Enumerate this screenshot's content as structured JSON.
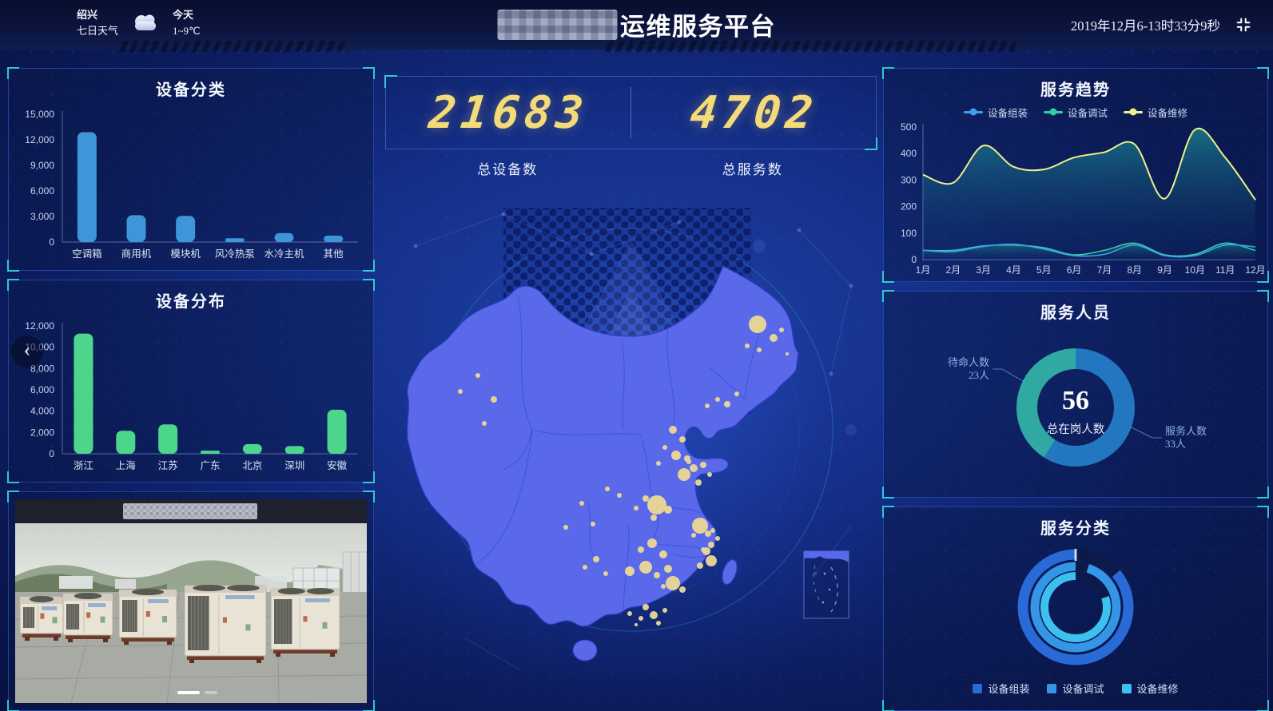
{
  "header": {
    "weather": {
      "city": "绍兴",
      "range_label": "七日天气",
      "today_label": "今天",
      "temperature": "1~9℃",
      "icon": "cloud-icon"
    },
    "title": "运维服务平台",
    "datetime": "2019年12月6-13时33分9秒",
    "fullscreen_icon": "compress-icon"
  },
  "stats": {
    "devices": {
      "value": "21683",
      "label": "总设备数"
    },
    "services": {
      "value": "4702",
      "label": "总服务数"
    }
  },
  "carousel": {
    "prev_glyph": "‹"
  },
  "chart_data": [
    {
      "id": "device-category",
      "type": "bar",
      "title": "设备分类",
      "categories": [
        "空调箱",
        "商用机",
        "模块机",
        "风冷热泵",
        "水冷主机",
        "其他"
      ],
      "values": [
        12900,
        3150,
        3070,
        450,
        1050,
        750
      ],
      "ylim": [
        0,
        15000
      ],
      "ytick_step": 3000,
      "color": "#3e96d9",
      "xlabel": "",
      "ylabel": "",
      "grid": false
    },
    {
      "id": "device-distribution",
      "type": "bar",
      "title": "设备分布",
      "categories": [
        "浙江",
        "上海",
        "江苏",
        "广东",
        "北京",
        "深圳",
        "安徽"
      ],
      "values": [
        11280,
        2160,
        2760,
        290,
        910,
        720,
        4130
      ],
      "ylim": [
        0,
        12000
      ],
      "ytick_step": 2000,
      "color": "#4bd68c",
      "xlabel": "",
      "ylabel": "",
      "grid": false
    },
    {
      "id": "service-trend",
      "type": "line",
      "title": "服务趋势",
      "x": [
        "1月",
        "2月",
        "3月",
        "4月",
        "5月",
        "6月",
        "7月",
        "8月",
        "9月",
        "10月",
        "11月",
        "12月"
      ],
      "ylim": [
        0,
        500
      ],
      "ytick_step": 100,
      "legend_position": "top",
      "smooth": true,
      "series": [
        {
          "name": "设备组装",
          "color": "#3f9fe8",
          "values": [
            35,
            30,
            50,
            58,
            40,
            15,
            20,
            55,
            15,
            15,
            55,
            48
          ]
        },
        {
          "name": "设备调试",
          "color": "#2ed0a2",
          "values": [
            35,
            35,
            52,
            55,
            45,
            18,
            35,
            62,
            18,
            20,
            62,
            35
          ],
          "area": "small"
        },
        {
          "name": "设备维修",
          "color": "#eef089",
          "values": [
            320,
            290,
            430,
            350,
            340,
            385,
            405,
            435,
            230,
            490,
            385,
            225
          ],
          "area": "big"
        }
      ]
    },
    {
      "id": "service-staff",
      "type": "pie",
      "title": "服务人员",
      "center_value": "56",
      "center_label": "总在岗人数",
      "slices": [
        {
          "name": "服务人数",
          "value": 33,
          "suffix": "人",
          "color": "#2277c0"
        },
        {
          "name": "待命人数",
          "value": 23,
          "suffix": "人",
          "color": "#2fa9a2"
        }
      ]
    },
    {
      "id": "service-category",
      "type": "pie",
      "subtype": "nested-rings",
      "title": "服务分类",
      "rings": [
        {
          "name": "设备组装",
          "color": "#2a6ad6",
          "pct": 86
        },
        {
          "name": "设备调试",
          "color": "#3496e4",
          "pct": 95
        },
        {
          "name": "设备维修",
          "color": "#3cc0ee",
          "pct": 80
        }
      ]
    }
  ],
  "map": {
    "dot_color": "#ecd995",
    "dots": [
      [
        468,
        168,
        11
      ],
      [
        488,
        185,
        5
      ],
      [
        455,
        195,
        3
      ],
      [
        470,
        200,
        3
      ],
      [
        498,
        175,
        3
      ],
      [
        505,
        205,
        2
      ],
      [
        430,
        268,
        4
      ],
      [
        442,
        255,
        3
      ],
      [
        418,
        262,
        3
      ],
      [
        405,
        270,
        3
      ],
      [
        362,
        300,
        5
      ],
      [
        374,
        312,
        4
      ],
      [
        352,
        322,
        3
      ],
      [
        366,
        332,
        6
      ],
      [
        380,
        336,
        4
      ],
      [
        344,
        342,
        3
      ],
      [
        388,
        348,
        5
      ],
      [
        400,
        344,
        4
      ],
      [
        408,
        356,
        3
      ],
      [
        376,
        356,
        8
      ],
      [
        394,
        366,
        4
      ],
      [
        382,
        340,
        3
      ],
      [
        342,
        394,
        12
      ],
      [
        328,
        386,
        4
      ],
      [
        356,
        400,
        5
      ],
      [
        338,
        410,
        4
      ],
      [
        316,
        398,
        3
      ],
      [
        295,
        382,
        3
      ],
      [
        280,
        374,
        3
      ],
      [
        396,
        420,
        10
      ],
      [
        406,
        430,
        4
      ],
      [
        412,
        426,
        3
      ],
      [
        418,
        436,
        3
      ],
      [
        410,
        444,
        4
      ],
      [
        400,
        450,
        3
      ],
      [
        388,
        432,
        3
      ],
      [
        336,
        442,
        6
      ],
      [
        322,
        450,
        4
      ],
      [
        350,
        456,
        5
      ],
      [
        328,
        472,
        8
      ],
      [
        308,
        477,
        6
      ],
      [
        342,
        482,
        4
      ],
      [
        356,
        474,
        5
      ],
      [
        362,
        492,
        9
      ],
      [
        374,
        500,
        4
      ],
      [
        350,
        496,
        3
      ],
      [
        404,
        452,
        5
      ],
      [
        410,
        464,
        7
      ],
      [
        396,
        470,
        4
      ],
      [
        266,
        462,
        4
      ],
      [
        252,
        472,
        3
      ],
      [
        278,
        480,
        3
      ],
      [
        328,
        522,
        4
      ],
      [
        338,
        532,
        5
      ],
      [
        322,
        536,
        3
      ],
      [
        308,
        530,
        3
      ],
      [
        344,
        542,
        3
      ],
      [
        352,
        526,
        3
      ],
      [
        316,
        544,
        2
      ],
      [
        118,
        232,
        3
      ],
      [
        138,
        262,
        4
      ],
      [
        126,
        292,
        3
      ],
      [
        96,
        252,
        3
      ],
      [
        248,
        392,
        3
      ],
      [
        228,
        422,
        3
      ],
      [
        262,
        418,
        3
      ]
    ]
  }
}
